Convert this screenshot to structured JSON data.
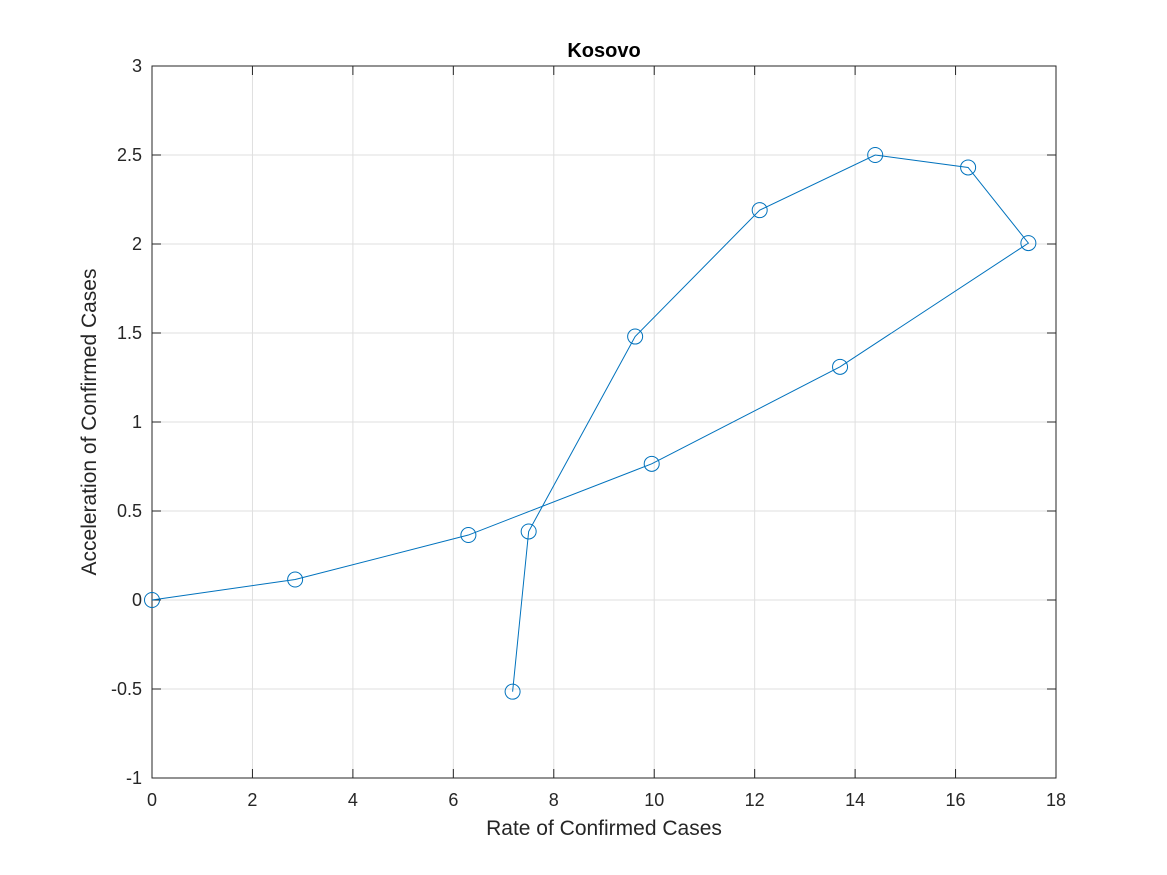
{
  "chart_data": {
    "type": "line",
    "title": "Kosovo",
    "xlabel": "Rate of Confirmed Cases",
    "ylabel": "Acceleration of Confirmed Cases",
    "xlim": [
      0,
      18
    ],
    "ylim": [
      -1,
      3
    ],
    "xticks": [
      0,
      2,
      4,
      6,
      8,
      10,
      12,
      14,
      16,
      18
    ],
    "yticks": [
      -1,
      -0.5,
      0,
      0.5,
      1,
      1.5,
      2,
      2.5,
      3
    ],
    "xtick_labels": [
      "0",
      "2",
      "4",
      "6",
      "8",
      "10",
      "12",
      "14",
      "16",
      "18"
    ],
    "ytick_labels": [
      "-1",
      "-0.5",
      "0",
      "0.5",
      "1",
      "1.5",
      "2",
      "2.5",
      "3"
    ],
    "grid": true,
    "marker": "circle",
    "series": [
      {
        "x": [
          0,
          2.85,
          6.3,
          9.95,
          13.7,
          17.45,
          16.25,
          14.4,
          12.1,
          9.62,
          7.5,
          7.18
        ],
        "y": [
          0,
          0.115,
          0.365,
          0.765,
          1.31,
          2.005,
          2.43,
          2.5,
          2.19,
          1.48,
          0.385,
          -0.515
        ],
        "color": "#0072BD"
      }
    ]
  }
}
